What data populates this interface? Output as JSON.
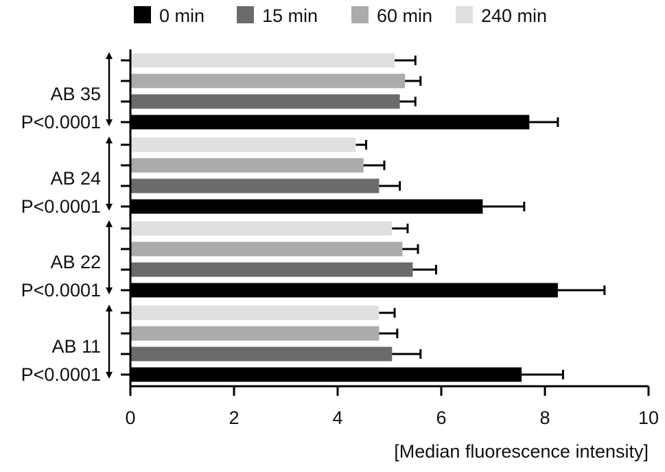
{
  "chart_data": {
    "type": "bar",
    "orientation": "horizontal",
    "xlabel": "[Median fluorescence intensity]",
    "xlim": [
      0,
      10
    ],
    "xticks": [
      0,
      2,
      4,
      6,
      8,
      10
    ],
    "grid": false,
    "legend_position": "top",
    "groups": [
      {
        "label": "AB 35",
        "pvalue": "P<0.0001"
      },
      {
        "label": "AB 24",
        "pvalue": "P<0.0001"
      },
      {
        "label": "AB 22",
        "pvalue": "P<0.0001"
      },
      {
        "label": "AB 11",
        "pvalue": "P<0.0001"
      }
    ],
    "series": [
      {
        "name": "0 min",
        "color": "#000000",
        "values": [
          7.7,
          6.8,
          8.25,
          7.55
        ],
        "errors": [
          0.55,
          0.8,
          0.9,
          0.8
        ]
      },
      {
        "name": "15 min",
        "color": "#6b6b6b",
        "values": [
          5.2,
          4.8,
          5.45,
          5.05
        ],
        "errors": [
          0.3,
          0.4,
          0.45,
          0.55
        ]
      },
      {
        "name": "60 min",
        "color": "#ababab",
        "values": [
          5.3,
          4.5,
          5.25,
          4.8
        ],
        "errors": [
          0.3,
          0.4,
          0.3,
          0.35
        ]
      },
      {
        "name": "240 min",
        "color": "#e0e0e0",
        "values": [
          5.1,
          4.35,
          5.05,
          4.8
        ],
        "errors": [
          0.4,
          0.2,
          0.3,
          0.3
        ]
      }
    ]
  }
}
